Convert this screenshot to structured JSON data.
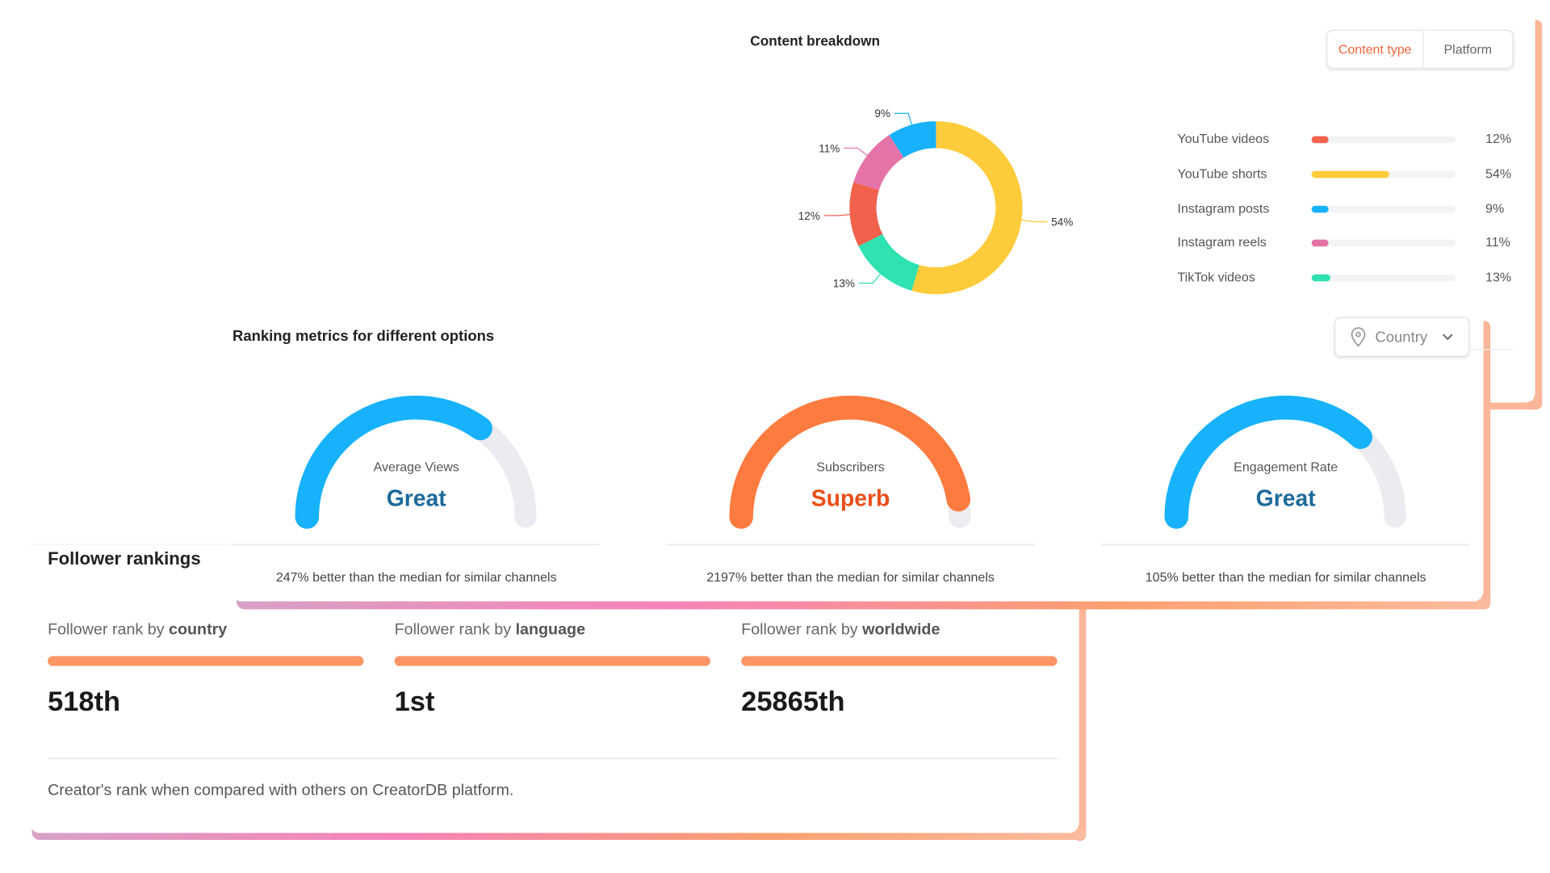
{
  "content_breakdown": {
    "title": "Content breakdown",
    "toggle": [
      "Content type",
      "Platform"
    ],
    "active_toggle": "Content type",
    "chart_data": {
      "type": "pie",
      "donut": true,
      "categories": [
        "YouTube videos",
        "YouTube shorts",
        "Instagram posts",
        "Instagram reels",
        "TikTok videos"
      ],
      "values": [
        12,
        54,
        9,
        11,
        13
      ],
      "labels": [
        "12%",
        "54%",
        "9%",
        "11%",
        "13%"
      ],
      "colors": [
        "#f2614c",
        "#fecb3a",
        "#17b2fb",
        "#e673a8",
        "#2ee2b2"
      ],
      "draw_order": [
        1,
        4,
        0,
        3,
        2
      ]
    }
  },
  "ranking_metrics": {
    "title": "Ranking metrics for different options",
    "dropdown": {
      "icon": "map-pin-icon",
      "value": "Country"
    },
    "gauges": [
      {
        "name": "Average Views",
        "rating": "Great",
        "level": 0.7,
        "color": "#17b2fb",
        "rating_color": "#1c6a9a",
        "note": "247% better than the median for similar channels"
      },
      {
        "name": "Subscribers",
        "rating": "Superb",
        "level": 0.95,
        "color": "#fe7b3f",
        "rating_color": "#ea4f1a",
        "note": "2197% better than the median for similar channels"
      },
      {
        "name": "Engagement Rate",
        "rating": "Great",
        "level": 0.74,
        "color": "#17b2fb",
        "rating_color": "#1c6a9a",
        "note": "105% better than the median for similar channels"
      }
    ]
  },
  "follower_rankings": {
    "title": "Follower rankings",
    "columns": [
      {
        "prefix": "Follower rank by ",
        "emphasis": "country",
        "value": "518th"
      },
      {
        "prefix": "Follower rank by ",
        "emphasis": "language",
        "value": "1st"
      },
      {
        "prefix": "Follower rank by ",
        "emphasis": "worldwide",
        "value": "25865th"
      }
    ],
    "footnote": "Creator's rank when compared with others on CreatorDB platform."
  }
}
